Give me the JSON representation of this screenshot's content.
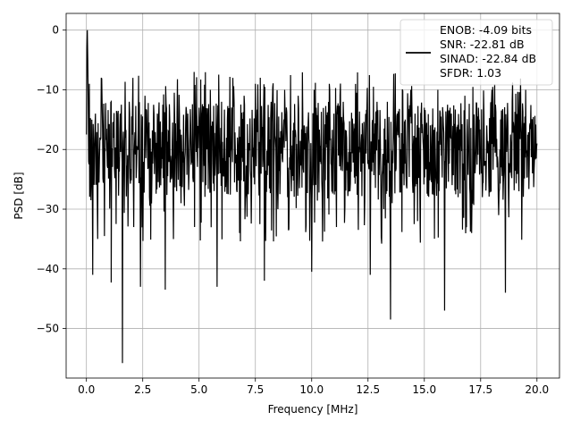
{
  "chart_data": {
    "type": "line",
    "xlabel": "Frequency [MHz]",
    "ylabel": "PSD [dB]",
    "xlim": [
      -0.9,
      21.0
    ],
    "ylim": [
      -58.3,
      2.8
    ],
    "xticks": [
      0.0,
      2.5,
      5.0,
      7.5,
      10.0,
      12.5,
      15.0,
      17.5,
      20.0
    ],
    "xtick_labels": [
      "0.0",
      "2.5",
      "5.0",
      "7.5",
      "10.0",
      "12.5",
      "15.0",
      "17.5",
      "20.0"
    ],
    "yticks": [
      0,
      -10,
      -20,
      -30,
      -40,
      -50
    ],
    "ytick_labels": [
      "0",
      "−10",
      "−20",
      "−30",
      "−40",
      "−50"
    ],
    "grid": true,
    "legend_position": "top-right",
    "legend_lines": [
      "ENOB: -4.09 bits",
      "SNR: -22.81 dB",
      "SINAD: -22.84 dB",
      "SFDR: 1.03"
    ],
    "line_color": "#000000",
    "series": [
      {
        "description": "noise-like PSD trace fluctuating roughly between -10 and -30 dB across 0-20 MHz, with a 0 dB spike near DC",
        "points": [
          [
            0.0,
            -17.5
          ],
          [
            0.02,
            -3.0
          ],
          [
            0.04,
            0.0
          ],
          [
            0.06,
            -5.0
          ],
          [
            0.08,
            -12.0
          ],
          [
            0.1,
            -22.0
          ],
          [
            0.13,
            -9.0
          ],
          [
            0.16,
            -24.0
          ],
          [
            0.2,
            -28.5
          ],
          [
            0.24,
            -15.0
          ],
          [
            0.28,
            -41.0
          ],
          [
            0.32,
            -20.0
          ],
          [
            0.4,
            -14.0
          ],
          [
            0.5,
            -35.0
          ],
          [
            0.6,
            -18.0
          ],
          [
            0.7,
            -13.0
          ],
          [
            0.8,
            -34.5
          ],
          [
            1.0,
            -16.0
          ],
          [
            1.1,
            -12.0
          ],
          [
            1.1,
            -42.3
          ],
          [
            1.3,
            -21.0
          ],
          [
            1.5,
            -14.0
          ],
          [
            1.6,
            -55.8
          ],
          [
            1.7,
            -20.0
          ],
          [
            1.9,
            -12.0
          ],
          [
            2.1,
            -33.0
          ],
          [
            2.3,
            -16.0
          ],
          [
            2.4,
            -43.0
          ],
          [
            2.6,
            -11.0
          ],
          [
            2.8,
            -28.0
          ],
          [
            3.0,
            -14.0
          ],
          [
            3.3,
            -26.0
          ],
          [
            3.5,
            -43.5
          ],
          [
            3.7,
            -15.0
          ],
          [
            3.9,
            -10.5
          ],
          [
            4.2,
            -29.0
          ],
          [
            4.5,
            -14.0
          ],
          [
            4.8,
            -33.0
          ],
          [
            5.0,
            -13.0
          ],
          [
            5.3,
            -26.0
          ],
          [
            5.5,
            -10.0
          ],
          [
            5.8,
            -43.0
          ],
          [
            6.0,
            -12.0
          ],
          [
            6.2,
            -22.0
          ],
          [
            6.5,
            -8.0
          ],
          [
            6.8,
            -34.0
          ],
          [
            7.0,
            -11.0
          ],
          [
            7.3,
            -25.0
          ],
          [
            7.5,
            -9.0
          ],
          [
            7.9,
            -42.0
          ],
          [
            8.2,
            -12.0
          ],
          [
            8.5,
            -30.0
          ],
          [
            8.8,
            -10.0
          ],
          [
            9.1,
            -27.0
          ],
          [
            9.4,
            -11.0
          ],
          [
            9.7,
            -20.0
          ],
          [
            10.0,
            -40.5
          ],
          [
            10.2,
            -13.0
          ],
          [
            10.5,
            -25.0
          ],
          [
            10.8,
            -10.0
          ],
          [
            11.1,
            -33.0
          ],
          [
            11.4,
            -12.0
          ],
          [
            11.7,
            -27.0
          ],
          [
            12.0,
            -10.5
          ],
          [
            12.3,
            -21.0
          ],
          [
            12.6,
            -41.0
          ],
          [
            12.9,
            -12.0
          ],
          [
            13.2,
            -30.0
          ],
          [
            13.5,
            -48.5
          ],
          [
            13.8,
            -14.0
          ],
          [
            14.1,
            -26.0
          ],
          [
            14.4,
            -10.0
          ],
          [
            14.7,
            -32.0
          ],
          [
            15.0,
            -13.0
          ],
          [
            15.3,
            -24.0
          ],
          [
            15.6,
            -10.0
          ],
          [
            15.9,
            -47.0
          ],
          [
            16.2,
            -14.0
          ],
          [
            16.5,
            -28.0
          ],
          [
            16.8,
            -11.0
          ],
          [
            17.1,
            -34.0
          ],
          [
            17.4,
            -13.0
          ],
          [
            17.7,
            -22.0
          ],
          [
            18.0,
            -10.0
          ],
          [
            18.3,
            -31.0
          ],
          [
            18.6,
            -44.0
          ],
          [
            18.9,
            -12.0
          ],
          [
            19.2,
            -27.0
          ],
          [
            19.5,
            -10.0
          ],
          [
            19.8,
            -24.0
          ],
          [
            20.0,
            -19.0
          ]
        ]
      }
    ]
  }
}
